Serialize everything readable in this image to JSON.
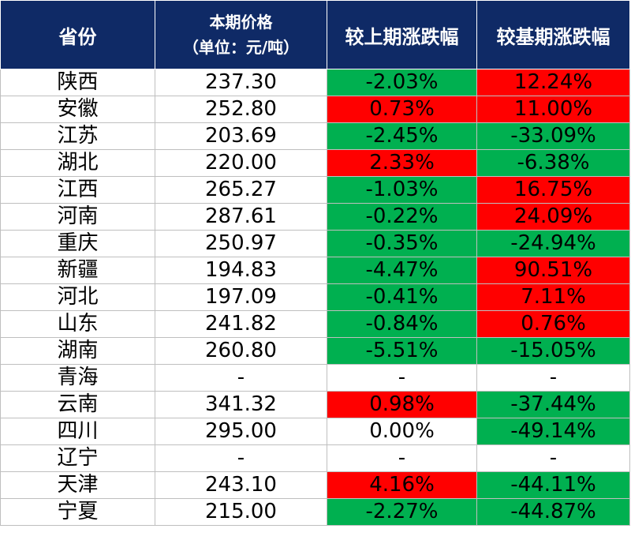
{
  "header": {
    "province": "省份",
    "price_line1": "本期价格",
    "price_line2": "（单位：元/吨）",
    "mom": "较上期涨跌幅",
    "yoy": "较基期涨跌幅"
  },
  "colors": {
    "header_bg": "#0f2a66",
    "up": "#ff0000",
    "down": "#00b050",
    "flat": "#ffffff"
  },
  "rows": [
    {
      "province": "陕西",
      "price": "237.30",
      "mom": "-2.03%",
      "yoy": "12.24%"
    },
    {
      "province": "安徽",
      "price": "252.80",
      "mom": "0.73%",
      "yoy": "11.00%"
    },
    {
      "province": "江苏",
      "price": "203.69",
      "mom": "-2.45%",
      "yoy": "-33.09%"
    },
    {
      "province": "湖北",
      "price": "220.00",
      "mom": "2.33%",
      "yoy": "-6.38%"
    },
    {
      "province": "江西",
      "price": "265.27",
      "mom": "-1.03%",
      "yoy": "16.75%"
    },
    {
      "province": "河南",
      "price": "287.61",
      "mom": "-0.22%",
      "yoy": "24.09%"
    },
    {
      "province": "重庆",
      "price": "250.97",
      "mom": "-0.35%",
      "yoy": "-24.94%"
    },
    {
      "province": "新疆",
      "price": "194.83",
      "mom": "-4.47%",
      "yoy": "90.51%"
    },
    {
      "province": "河北",
      "price": "197.09",
      "mom": "-0.41%",
      "yoy": "7.11%"
    },
    {
      "province": "山东",
      "price": "241.82",
      "mom": "-0.84%",
      "yoy": "0.76%"
    },
    {
      "province": "湖南",
      "price": "260.80",
      "mom": "-5.51%",
      "yoy": "-15.05%"
    },
    {
      "province": "青海",
      "price": "-",
      "mom": "-",
      "yoy": "-"
    },
    {
      "province": "云南",
      "price": "341.32",
      "mom": "0.98%",
      "yoy": "-37.44%"
    },
    {
      "province": "四川",
      "price": "295.00",
      "mom": "0.00%",
      "yoy": "-49.14%"
    },
    {
      "province": "辽宁",
      "price": "-",
      "mom": "-",
      "yoy": "-"
    },
    {
      "province": "天津",
      "price": "243.10",
      "mom": "4.16%",
      "yoy": "-44.11%"
    },
    {
      "province": "宁夏",
      "price": "215.00",
      "mom": "-2.27%",
      "yoy": "-44.87%"
    }
  ]
}
